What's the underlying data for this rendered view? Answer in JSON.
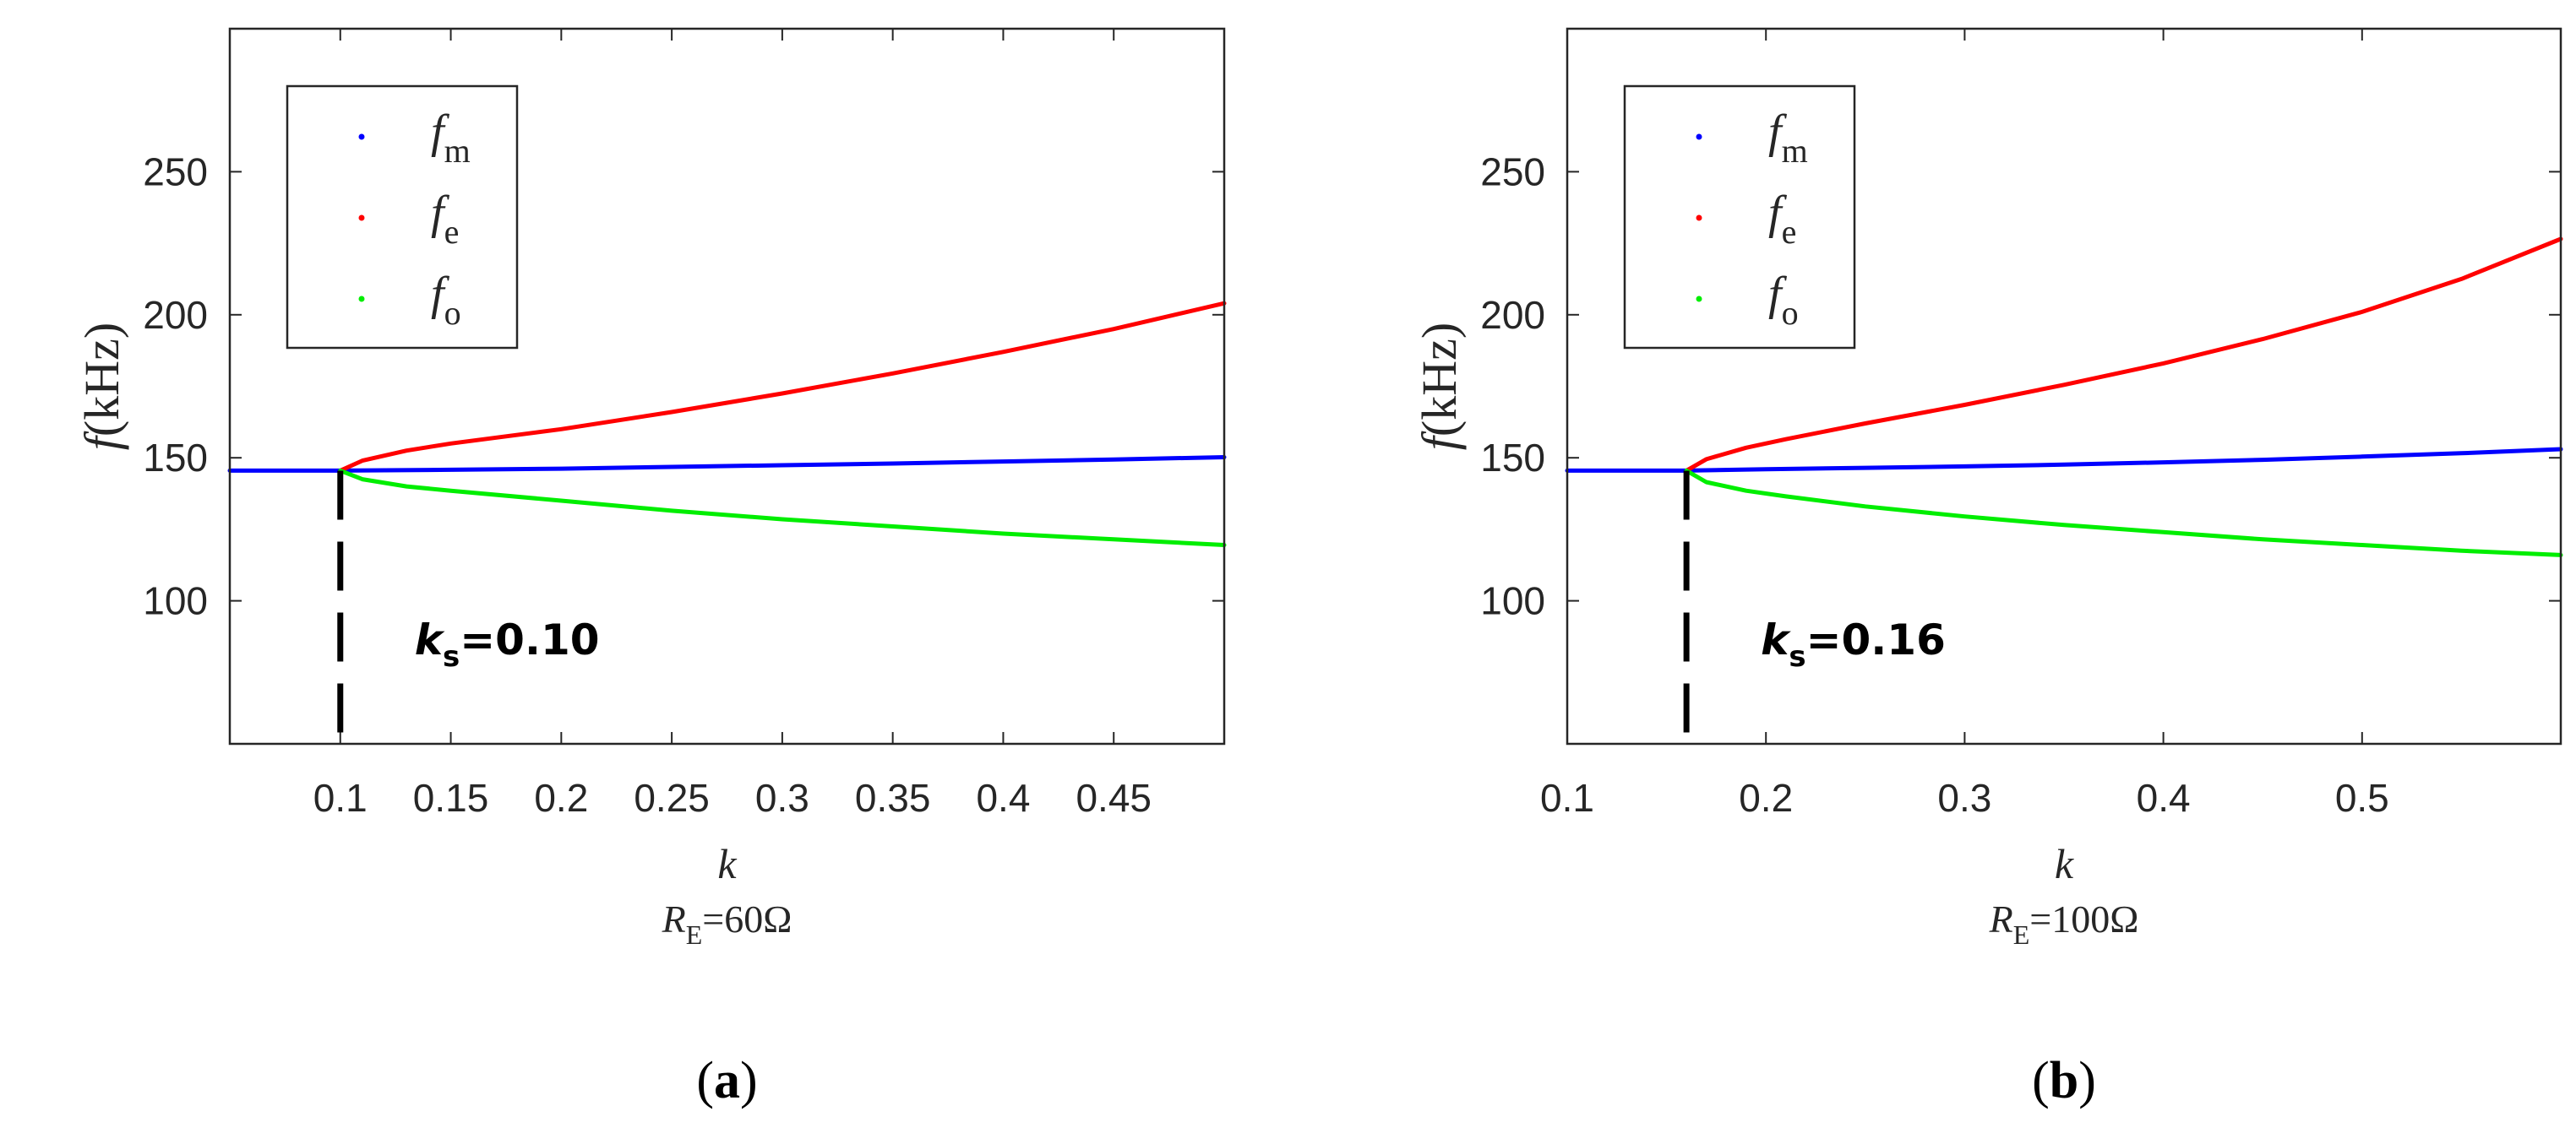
{
  "figure": {
    "panel_labels": [
      "(a)",
      "(b)"
    ]
  },
  "chart_data": [
    {
      "type": "line",
      "panel": "(a)",
      "ylabel": "f(kHz)",
      "xlabel": "k",
      "subtitle": "R_E=60Ω",
      "subtitle_main": "R",
      "subtitle_sub": "E",
      "subtitle_rest": "=60Ω",
      "xlim": [
        0.05,
        0.5
      ],
      "ylim": [
        50,
        300
      ],
      "xticks": [
        0.1,
        0.15,
        0.2,
        0.25,
        0.3,
        0.35,
        0.4,
        0.45
      ],
      "xtick_labels": [
        "0.1",
        "0.15",
        "0.2",
        "0.25",
        "0.3",
        "0.35",
        "0.4",
        "0.45"
      ],
      "yticks": [
        100,
        150,
        200,
        250
      ],
      "ytick_labels": [
        "100",
        "150",
        "200",
        "250"
      ],
      "legend": {
        "position": "top-left",
        "entries": [
          {
            "symbol": "f",
            "sub": "m",
            "color": "#0000ff"
          },
          {
            "symbol": "f",
            "sub": "e",
            "color": "#ff0000"
          },
          {
            "symbol": "f",
            "sub": "o",
            "color": "#00ee00"
          }
        ]
      },
      "ks": 0.1,
      "annotation": {
        "main": "k",
        "sub": "s",
        "rest": "=0.10"
      },
      "series": [
        {
          "name": "f_m",
          "color": "#0000ff",
          "x": [
            0.05,
            0.1,
            0.15,
            0.2,
            0.25,
            0.3,
            0.35,
            0.4,
            0.45,
            0.5
          ],
          "y": [
            145.5,
            145.5,
            145.8,
            146.2,
            146.8,
            147.4,
            148.0,
            148.7,
            149.4,
            150.2
          ]
        },
        {
          "name": "f_e",
          "color": "#ff0000",
          "x": [
            0.1,
            0.11,
            0.13,
            0.15,
            0.2,
            0.25,
            0.3,
            0.35,
            0.4,
            0.45,
            0.5
          ],
          "y": [
            145.5,
            149.0,
            152.5,
            155.0,
            160.0,
            166.0,
            172.5,
            179.5,
            187.0,
            195.0,
            204.0
          ]
        },
        {
          "name": "f_o",
          "color": "#00ee00",
          "x": [
            0.1,
            0.11,
            0.13,
            0.15,
            0.2,
            0.25,
            0.3,
            0.35,
            0.4,
            0.45,
            0.5
          ],
          "y": [
            145.5,
            142.5,
            140.0,
            138.5,
            135.0,
            131.5,
            128.5,
            126.0,
            123.5,
            121.5,
            119.5
          ]
        }
      ]
    },
    {
      "type": "line",
      "panel": "(b)",
      "ylabel": "f(kHz)",
      "xlabel": "k",
      "subtitle": "R_E=100Ω",
      "subtitle_main": "R",
      "subtitle_sub": "E",
      "subtitle_rest": "=100Ω",
      "xlim": [
        0.1,
        0.6
      ],
      "ylim": [
        50,
        300
      ],
      "xticks": [
        0.1,
        0.2,
        0.3,
        0.4,
        0.5
      ],
      "xtick_labels": [
        "0.1",
        "0.2",
        "0.3",
        "0.4",
        "0.5"
      ],
      "yticks": [
        100,
        150,
        200,
        250
      ],
      "ytick_labels": [
        "100",
        "150",
        "200",
        "250"
      ],
      "legend": {
        "position": "top-left",
        "entries": [
          {
            "symbol": "f",
            "sub": "m",
            "color": "#0000ff"
          },
          {
            "symbol": "f",
            "sub": "e",
            "color": "#ff0000"
          },
          {
            "symbol": "f",
            "sub": "o",
            "color": "#00ee00"
          }
        ]
      },
      "ks": 0.16,
      "annotation": {
        "main": "k",
        "sub": "s",
        "rest": "=0.16"
      },
      "series": [
        {
          "name": "f_m",
          "color": "#0000ff",
          "x": [
            0.1,
            0.16,
            0.2,
            0.25,
            0.3,
            0.35,
            0.4,
            0.45,
            0.5,
            0.55,
            0.6
          ],
          "y": [
            145.5,
            145.5,
            146.0,
            146.5,
            147.0,
            147.6,
            148.4,
            149.3,
            150.4,
            151.6,
            153.0
          ]
        },
        {
          "name": "f_e",
          "color": "#ff0000",
          "x": [
            0.16,
            0.17,
            0.19,
            0.21,
            0.25,
            0.3,
            0.35,
            0.4,
            0.45,
            0.5,
            0.55,
            0.6
          ],
          "y": [
            145.5,
            149.5,
            153.5,
            156.5,
            162.0,
            168.5,
            175.5,
            183.0,
            191.5,
            201.0,
            212.5,
            226.5
          ]
        },
        {
          "name": "f_o",
          "color": "#00ee00",
          "x": [
            0.16,
            0.17,
            0.19,
            0.21,
            0.25,
            0.3,
            0.35,
            0.4,
            0.45,
            0.5,
            0.55,
            0.6
          ],
          "y": [
            145.5,
            141.5,
            138.5,
            136.5,
            133.0,
            129.5,
            126.5,
            124.0,
            121.5,
            119.5,
            117.5,
            116.0
          ]
        }
      ]
    }
  ]
}
